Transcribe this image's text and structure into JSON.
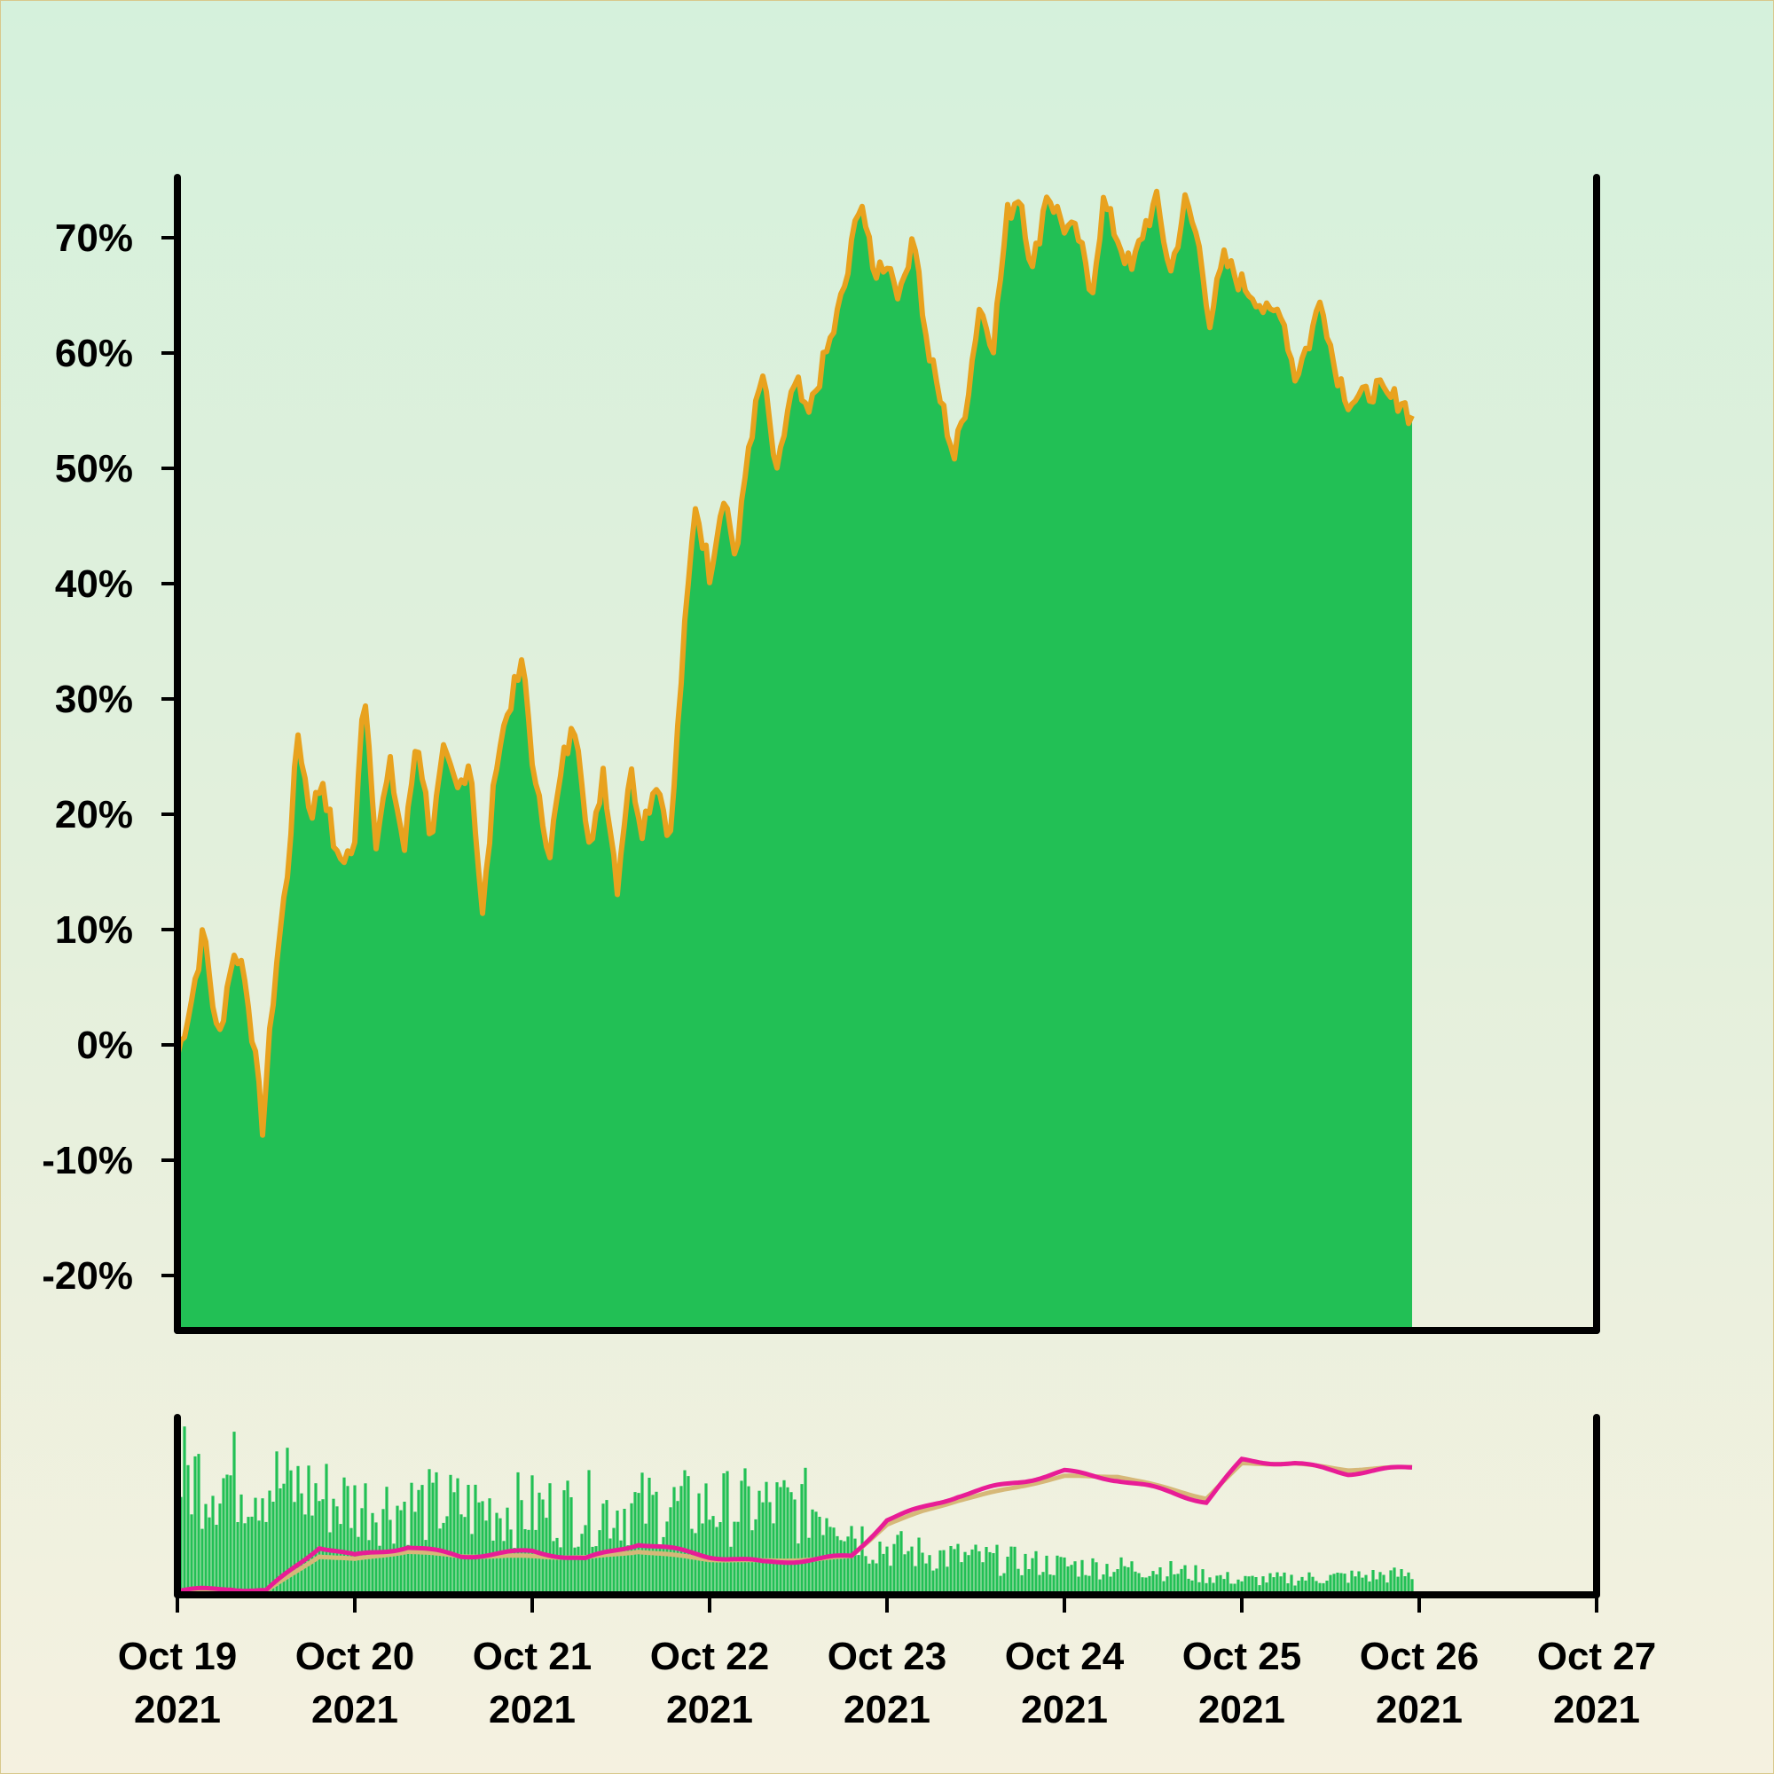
{
  "colors": {
    "area_fill": "#22c055",
    "price_line": "#e8a21e",
    "volume_bars": "#22c055",
    "ma_fast": "#e81c96",
    "ma_slow": "#d6b878",
    "axis": "#000000"
  },
  "chart_data": [
    {
      "type": "area",
      "title": "",
      "xlabel": "",
      "ylabel": "",
      "ylim": [
        -24,
        75
      ],
      "y_ticks": [
        {
          "value": -20,
          "label": "-20%"
        },
        {
          "value": -10,
          "label": "-10%"
        },
        {
          "value": 0,
          "label": "0%"
        },
        {
          "value": 10,
          "label": "10%"
        },
        {
          "value": 20,
          "label": "20%"
        },
        {
          "value": 30,
          "label": "30%"
        },
        {
          "value": 40,
          "label": "40%"
        },
        {
          "value": 50,
          "label": "50%"
        },
        {
          "value": 60,
          "label": "60%"
        },
        {
          "value": 70,
          "label": "70%"
        }
      ],
      "x_unit": "days since Oct 19 2021",
      "series": [
        {
          "x": [
            0,
            0.08,
            0.15,
            0.23,
            0.3,
            0.35,
            0.4,
            0.48,
            0.55,
            0.62,
            0.68,
            0.75,
            0.82,
            0.9,
            1.0,
            1.05,
            1.12,
            1.2,
            1.28,
            1.35,
            1.43,
            1.5,
            1.58,
            1.65,
            1.72,
            1.8,
            1.88,
            1.95,
            2.02,
            2.1,
            2.18,
            2.25,
            2.33,
            2.4,
            2.48,
            2.55,
            2.62,
            2.7,
            2.78,
            2.85,
            2.92,
            3.0,
            3.08,
            3.15,
            3.22,
            3.3,
            3.38,
            3.45,
            3.5,
            3.55,
            3.62,
            3.7,
            3.78,
            3.85,
            3.92,
            4.0,
            4.08,
            4.15,
            4.22,
            4.3,
            4.38,
            4.45,
            4.52,
            4.6,
            4.68,
            4.75,
            4.82,
            4.9,
            5.0,
            5.08,
            5.15,
            5.22,
            5.3,
            5.38,
            5.45,
            5.52,
            5.6,
            5.68,
            5.75,
            5.82,
            5.9,
            6.0,
            6.08,
            6.15,
            6.22,
            6.3,
            6.38,
            6.45,
            6.52,
            6.6,
            6.68,
            6.75,
            6.82,
            6.9,
            6.97
          ],
          "y": [
            -1,
            4,
            10,
            0,
            7,
            8,
            4,
            -7,
            6,
            15,
            27,
            20,
            23,
            16,
            17,
            32,
            18,
            24,
            17,
            27,
            18,
            25,
            22,
            25,
            11,
            25,
            30,
            33,
            22,
            17,
            25,
            28,
            16,
            24,
            14,
            24,
            19,
            23,
            18,
            34,
            47,
            41,
            48,
            42,
            52,
            58,
            49,
            56,
            57,
            54,
            58,
            62,
            67,
            74,
            67,
            68,
            65,
            71,
            61,
            56,
            51,
            56,
            64,
            61,
            72,
            74,
            67,
            74,
            71,
            70,
            65,
            73,
            70,
            67,
            71,
            73,
            67,
            73,
            70,
            63,
            68,
            66,
            65,
            63,
            64,
            58,
            61,
            65,
            59,
            56,
            56,
            57,
            56,
            56,
            54
          ]
        }
      ]
    },
    {
      "type": "bar",
      "title": "",
      "xlabel": "",
      "ylabel": "",
      "x_ticks": [
        {
          "value": 0,
          "label1": "Oct 19",
          "label2": "2021"
        },
        {
          "value": 1,
          "label1": "Oct 20",
          "label2": "2021"
        },
        {
          "value": 2,
          "label1": "Oct 21",
          "label2": "2021"
        },
        {
          "value": 3,
          "label1": "Oct 22",
          "label2": "2021"
        },
        {
          "value": 4,
          "label1": "Oct 23",
          "label2": "2021"
        },
        {
          "value": 5,
          "label1": "Oct 24",
          "label2": "2021"
        },
        {
          "value": 6,
          "label1": "Oct 25",
          "label2": "2021"
        },
        {
          "value": 7,
          "label1": "Oct 26",
          "label2": "2021"
        },
        {
          "value": 8,
          "label1": "Oct 27",
          "label2": "2021"
        }
      ],
      "xlim": [
        0,
        8
      ],
      "volume_envelope": {
        "x": [
          0,
          0.5,
          1.0,
          2.0,
          3.0,
          3.7,
          3.9,
          4.2,
          5.0,
          5.5,
          6.0,
          6.5,
          7.0,
          7.5,
          8.0
        ],
        "y": [
          0.82,
          0.78,
          0.62,
          0.58,
          0.6,
          0.6,
          0.35,
          0.28,
          0.2,
          0.18,
          0.1,
          0.12,
          0.14,
          0.18,
          0.3
        ]
      },
      "series": [
        {
          "name": "",
          "x": [
            0,
            0.3,
            0.5,
            0.8,
            1.0,
            1.3,
            1.6,
            2.0,
            2.3,
            2.6,
            3.0,
            3.3,
            3.6,
            3.8,
            4.0,
            4.2,
            4.4,
            4.6,
            5.0,
            5.3,
            5.6,
            5.8,
            6.0,
            6.3,
            6.6,
            7.0,
            7.3,
            7.6,
            8.0
          ],
          "y": [
            0.0,
            0.02,
            0.0,
            0.28,
            0.22,
            0.28,
            0.22,
            0.25,
            0.2,
            0.3,
            0.22,
            0.18,
            0.2,
            0.22,
            0.45,
            0.52,
            0.6,
            0.65,
            0.75,
            0.7,
            0.62,
            0.56,
            0.82,
            0.8,
            0.74,
            0.78,
            0.78,
            0.75,
            0.68
          ]
        },
        {
          "name": "",
          "x": [
            0,
            0.5,
            0.8,
            1.0,
            1.3,
            1.6,
            2.0,
            2.3,
            2.6,
            3.0,
            3.3,
            3.6,
            3.8,
            4.0,
            4.2,
            4.4,
            4.6,
            5.0,
            5.3,
            5.6,
            5.8,
            6.0,
            6.3,
            6.6,
            7.0,
            7.3,
            7.6,
            8.0
          ],
          "y": [
            0.0,
            0.0,
            0.22,
            0.2,
            0.25,
            0.22,
            0.22,
            0.21,
            0.25,
            0.2,
            0.19,
            0.2,
            0.22,
            0.42,
            0.5,
            0.57,
            0.62,
            0.72,
            0.72,
            0.64,
            0.58,
            0.8,
            0.8,
            0.76,
            0.78,
            0.78,
            0.74,
            0.68
          ]
        }
      ]
    }
  ]
}
